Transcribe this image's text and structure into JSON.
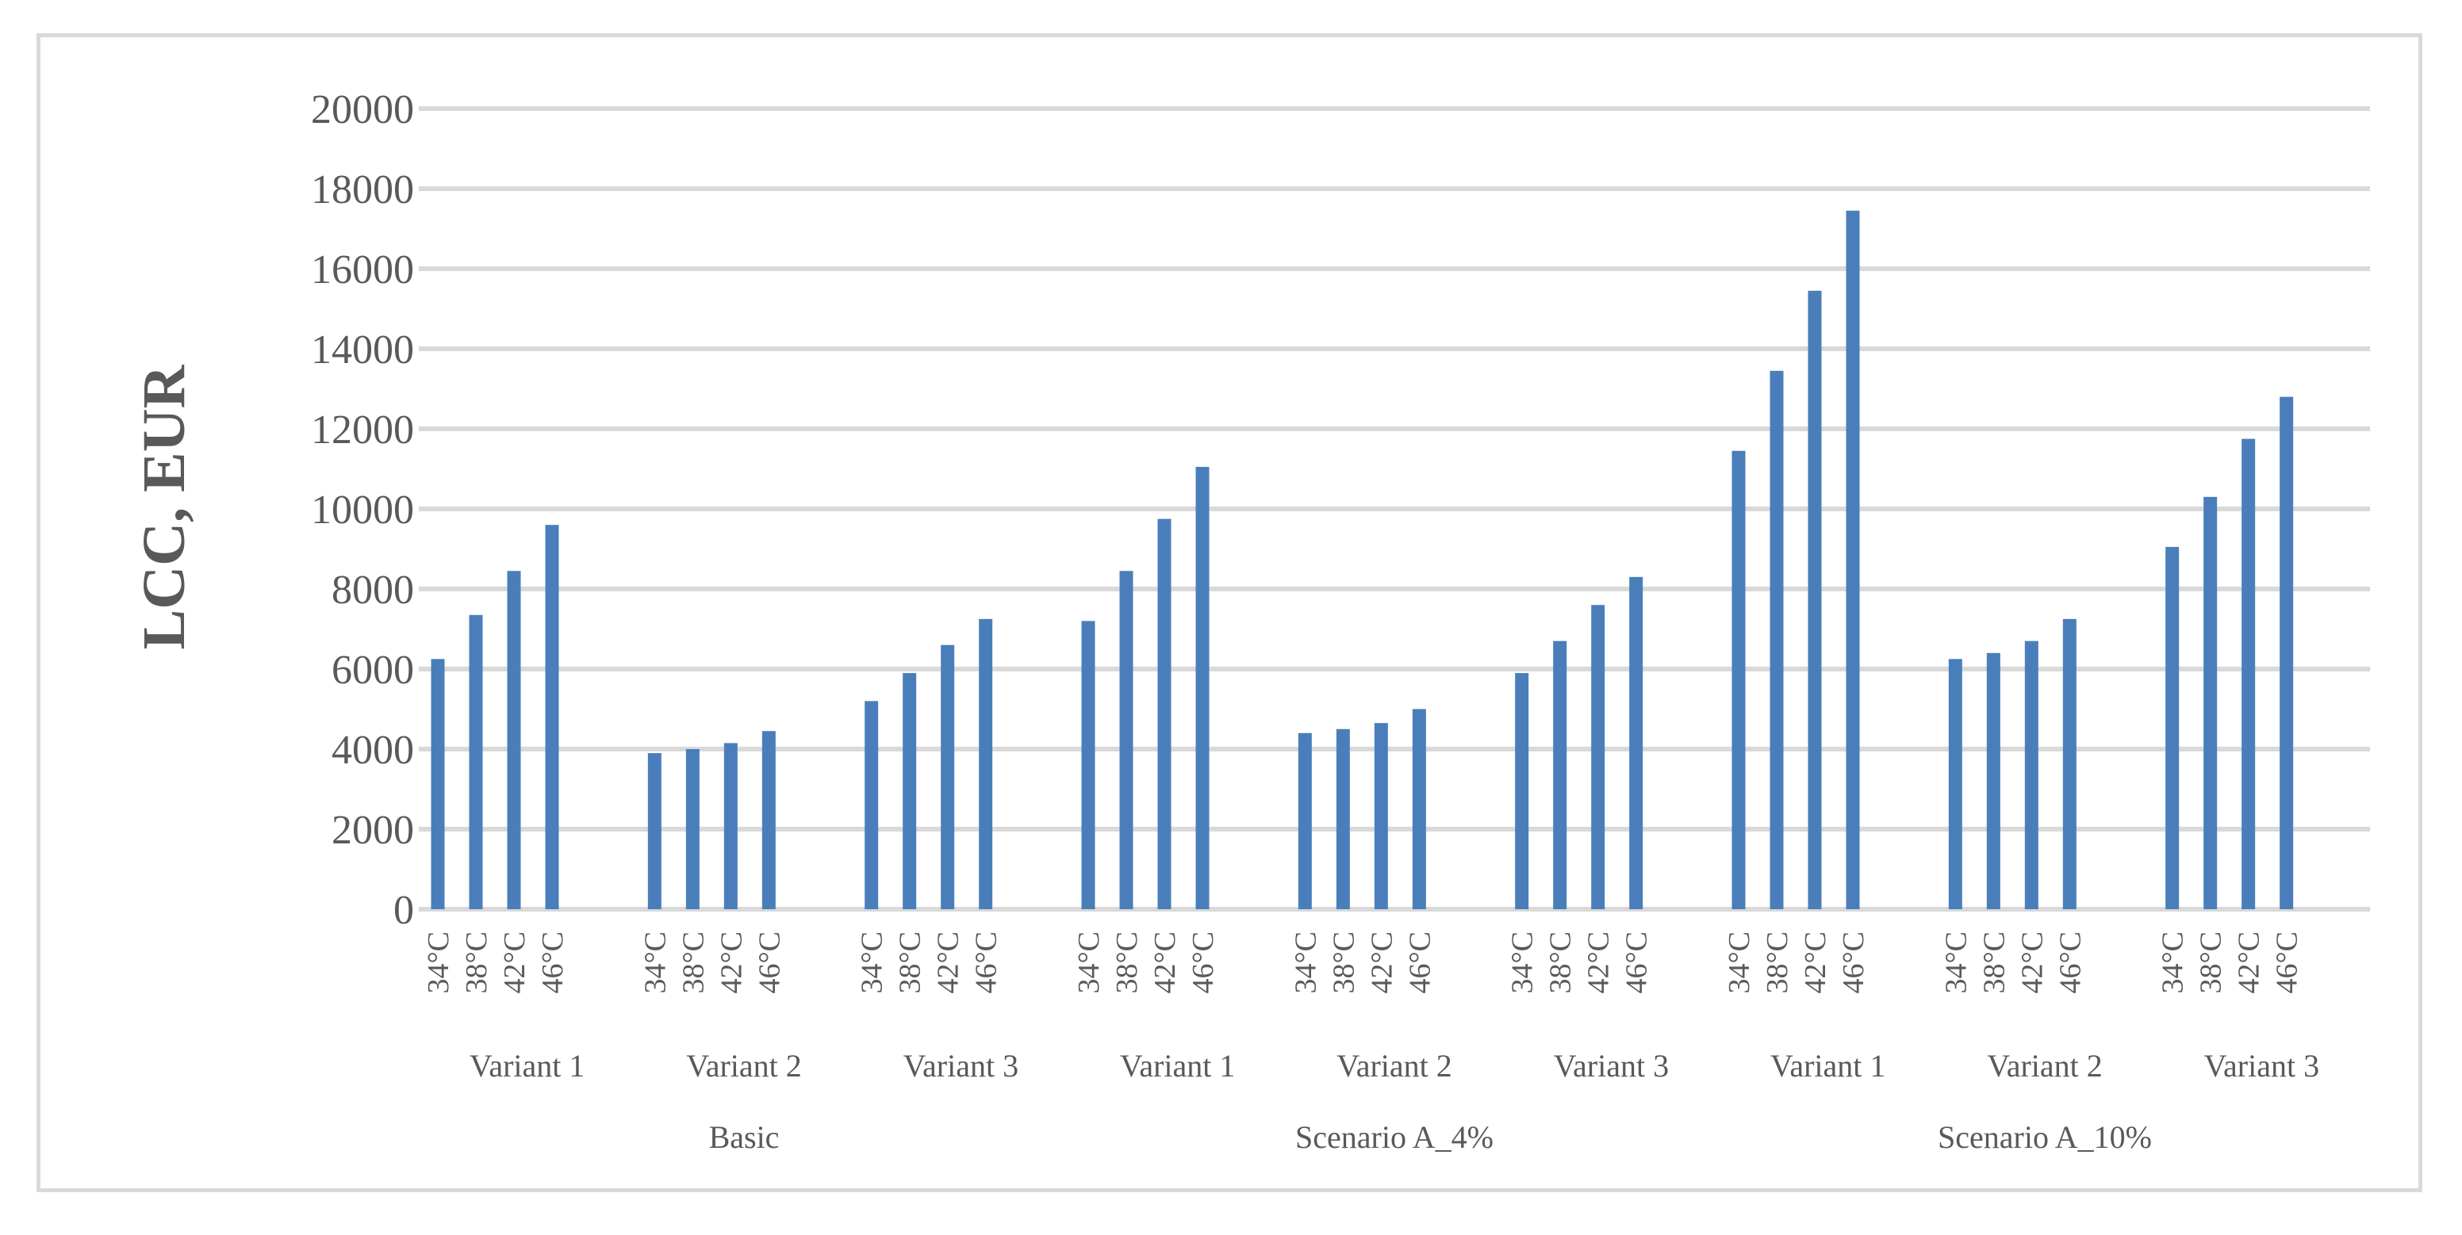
{
  "chart_data": {
    "type": "bar",
    "title": "",
    "xlabel": "",
    "ylabel": "LCC, EUR",
    "ylim": [
      0,
      20000
    ],
    "yticks": [
      0,
      2000,
      4000,
      6000,
      8000,
      10000,
      12000,
      14000,
      16000,
      18000,
      20000
    ],
    "grid": true,
    "legend": "none",
    "bar_color": "#4a7ebb",
    "groups": [
      {
        "label": "Basic",
        "variants": [
          {
            "label": "Variant 1",
            "categories": [
              "34°C",
              "38°C",
              "42°C",
              "46°C"
            ],
            "values": [
              6250,
              7350,
              8450,
              9600
            ]
          },
          {
            "label": "Variant 2",
            "categories": [
              "34°C",
              "38°C",
              "42°C",
              "46°C"
            ],
            "values": [
              3900,
              4000,
              4150,
              4450
            ]
          },
          {
            "label": "Variant 3",
            "categories": [
              "34°C",
              "38°C",
              "42°C",
              "46°C"
            ],
            "values": [
              5200,
              5900,
              6600,
              7250
            ]
          }
        ]
      },
      {
        "label": "Scenario A_4%",
        "variants": [
          {
            "label": "Variant 1",
            "categories": [
              "34°C",
              "38°C",
              "42°C",
              "46°C"
            ],
            "values": [
              7200,
              8450,
              9750,
              11050
            ]
          },
          {
            "label": "Variant 2",
            "categories": [
              "34°C",
              "38°C",
              "42°C",
              "46°C"
            ],
            "values": [
              4400,
              4500,
              4650,
              5000
            ]
          },
          {
            "label": "Variant 3",
            "categories": [
              "34°C",
              "38°C",
              "42°C",
              "46°C"
            ],
            "values": [
              5900,
              6700,
              7600,
              8300
            ]
          }
        ]
      },
      {
        "label": "Scenario A_10%",
        "variants": [
          {
            "label": "Variant 1",
            "categories": [
              "34°C",
              "38°C",
              "42°C",
              "46°C"
            ],
            "values": [
              11450,
              13450,
              15450,
              17450
            ]
          },
          {
            "label": "Variant 2",
            "categories": [
              "34°C",
              "38°C",
              "42°C",
              "46°C"
            ],
            "values": [
              6250,
              6400,
              6700,
              7250
            ]
          },
          {
            "label": "Variant 3",
            "categories": [
              "34°C",
              "38°C",
              "42°C",
              "46°C"
            ],
            "values": [
              9050,
              10300,
              11750,
              12800
            ]
          }
        ]
      }
    ]
  }
}
